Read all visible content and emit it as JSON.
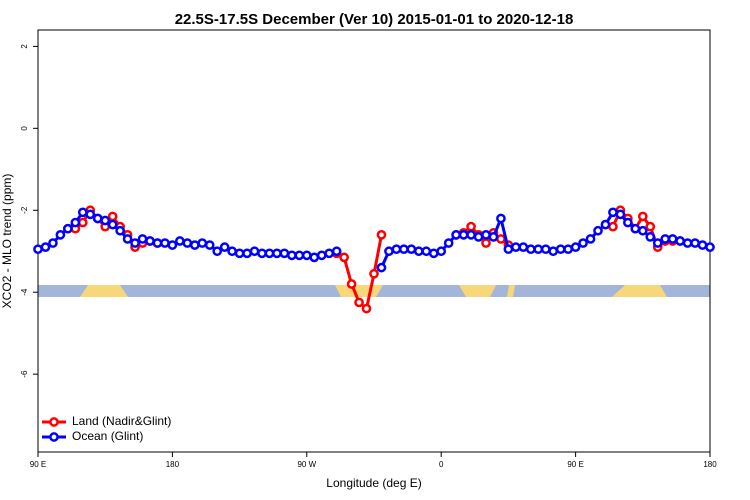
{
  "chart_data": {
    "type": "line",
    "title": "22.5S-17.5S December (Ver 10)   2015-01-01 to 2020-12-18",
    "x_label": "Longitude (deg E)",
    "y_label": "XCO2 - MLO trend (ppm)",
    "x": [
      90,
      95,
      100,
      105,
      110,
      115,
      120,
      125,
      130,
      135,
      140,
      145,
      150,
      155,
      160,
      165,
      170,
      175,
      180,
      185,
      190,
      195,
      200,
      205,
      210,
      215,
      220,
      225,
      230,
      235,
      240,
      245,
      250,
      255,
      260,
      265,
      270,
      275,
      280,
      285,
      290,
      295,
      300,
      305,
      310,
      315,
      320,
      325,
      330,
      335,
      340,
      345,
      350,
      355,
      360,
      365,
      370,
      375,
      380,
      385,
      390,
      395,
      400,
      405,
      410,
      415,
      420,
      425,
      430,
      435,
      440,
      445,
      450,
      455,
      460,
      465,
      470,
      475,
      480,
      485,
      490,
      495,
      500,
      505,
      510,
      515,
      520,
      525,
      530,
      535,
      540
    ],
    "series": [
      {
        "name": "Land (Nadir&Glint)",
        "color": "#ff0000",
        "values": [
          null,
          null,
          null,
          null,
          -2.45,
          -2.45,
          -2.3,
          -2.0,
          -2.2,
          -2.4,
          -2.15,
          -2.4,
          -2.6,
          -2.9,
          -2.8,
          -2.75,
          -2.8,
          null,
          null,
          null,
          null,
          null,
          null,
          null,
          null,
          null,
          null,
          null,
          null,
          null,
          null,
          null,
          null,
          null,
          null,
          null,
          null,
          null,
          null,
          null,
          -3.05,
          -3.15,
          -3.8,
          -4.25,
          -4.4,
          -3.55,
          -2.6,
          null,
          null,
          null,
          null,
          null,
          null,
          null,
          null,
          null,
          -2.6,
          -2.55,
          -2.4,
          -2.6,
          -2.8,
          -2.55,
          -2.7,
          -2.85,
          null,
          null,
          null,
          null,
          null,
          null,
          null,
          null,
          null,
          null,
          null,
          null,
          null,
          -2.4,
          -2.0,
          -2.2,
          -2.45,
          -2.15,
          -2.4,
          -2.9,
          -2.75,
          -2.75,
          -2.75,
          null,
          null,
          null,
          null
        ]
      },
      {
        "name": "Ocean (Glint)",
        "color": "#0000ff",
        "values": [
          -2.95,
          -2.9,
          -2.8,
          -2.6,
          -2.45,
          -2.3,
          -2.05,
          -2.1,
          -2.2,
          -2.25,
          -2.35,
          -2.5,
          -2.7,
          -2.8,
          -2.7,
          -2.75,
          -2.8,
          -2.8,
          -2.85,
          -2.75,
          -2.8,
          -2.85,
          -2.8,
          -2.85,
          -3.0,
          -2.9,
          -3.0,
          -3.05,
          -3.05,
          -3.0,
          -3.05,
          -3.05,
          -3.05,
          -3.05,
          -3.1,
          -3.1,
          -3.1,
          -3.15,
          -3.1,
          -3.05,
          -3.0,
          null,
          null,
          null,
          null,
          null,
          -3.4,
          -3.0,
          -2.95,
          -2.95,
          -2.95,
          -3.0,
          -3.0,
          -3.05,
          -3.0,
          -2.8,
          -2.6,
          -2.6,
          -2.6,
          -2.65,
          -2.6,
          -2.65,
          -2.2,
          -2.95,
          -2.9,
          -2.9,
          -2.95,
          -2.95,
          -2.95,
          -3.0,
          -2.95,
          -2.95,
          -2.9,
          -2.8,
          -2.7,
          -2.5,
          -2.35,
          -2.05,
          -2.1,
          -2.3,
          -2.45,
          -2.5,
          -2.65,
          -2.8,
          -2.7,
          -2.7,
          -2.75,
          -2.8,
          -2.8,
          -2.85,
          -2.9
        ]
      }
    ],
    "xlim": [
      90,
      540
    ],
    "xticks": [
      {
        "value": 90,
        "label": "90 E"
      },
      {
        "value": 180,
        "label": "180"
      },
      {
        "value": 270,
        "label": "90 W"
      },
      {
        "value": 360,
        "label": "0"
      },
      {
        "value": 450,
        "label": "90 E"
      },
      {
        "value": 540,
        "label": "180"
      }
    ],
    "ylim": [
      -7.9,
      2.4
    ],
    "yticks": [
      2,
      0,
      -2,
      -4,
      -6
    ],
    "legend": "bottomleft"
  }
}
